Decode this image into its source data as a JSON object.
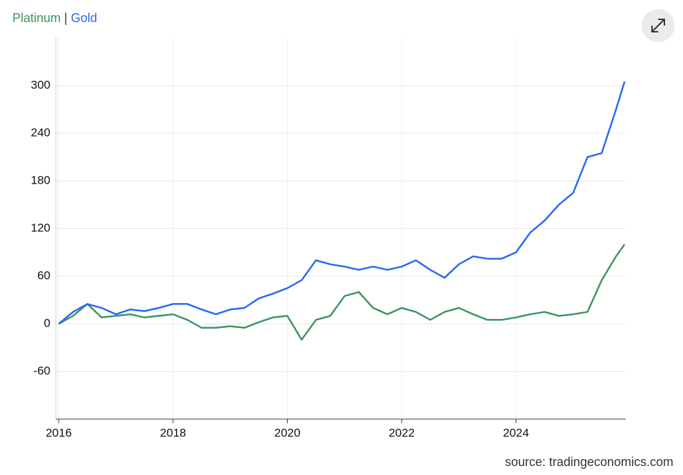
{
  "chart_data": {
    "type": "line",
    "legend_separator": "|",
    "source": "source: tradingeconomics.com",
    "x": [
      2016,
      2016.25,
      2016.5,
      2016.75,
      2017,
      2017.25,
      2017.5,
      2017.75,
      2018,
      2018.25,
      2018.5,
      2018.75,
      2019,
      2019.25,
      2019.5,
      2019.75,
      2020,
      2020.25,
      2020.5,
      2020.75,
      2021,
      2021.25,
      2021.5,
      2021.75,
      2022,
      2022.25,
      2022.5,
      2022.75,
      2023,
      2023.25,
      2023.5,
      2023.75,
      2024,
      2024.25,
      2024.5,
      2024.75,
      2025,
      2025.25,
      2025.5,
      2025.75,
      2025.9
    ],
    "series": [
      {
        "name": "Platinum",
        "color": "#3d9460",
        "values": [
          0,
          10,
          25,
          8,
          10,
          12,
          8,
          10,
          12,
          5,
          -5,
          -5,
          -3,
          -5,
          2,
          8,
          10,
          -20,
          5,
          10,
          35,
          40,
          20,
          12,
          20,
          15,
          5,
          15,
          20,
          12,
          5,
          5,
          8,
          12,
          15,
          10,
          12,
          15,
          55,
          85,
          100
        ]
      },
      {
        "name": "Gold",
        "color": "#2868f0",
        "values": [
          0,
          15,
          25,
          20,
          12,
          18,
          16,
          20,
          25,
          25,
          18,
          12,
          18,
          20,
          32,
          38,
          45,
          55,
          80,
          75,
          72,
          68,
          72,
          68,
          72,
          80,
          68,
          58,
          75,
          85,
          82,
          82,
          90,
          115,
          130,
          150,
          165,
          210,
          215,
          270,
          305
        ]
      }
    ],
    "xlim": [
      2015.95,
      2025.92
    ],
    "xticks": [
      2016,
      2018,
      2020,
      2022,
      2024
    ],
    "ylim": [
      -120,
      360
    ],
    "yticks": [
      -60,
      0,
      60,
      120,
      180,
      240,
      300
    ],
    "grid": true
  }
}
